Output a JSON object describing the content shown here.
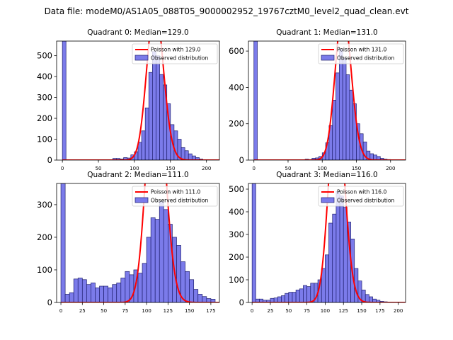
{
  "title": "Data file: modeM0/AS1A05_088T05_9000002952_19767cztM0_level2_quad_clean.evt",
  "colors": {
    "poisson": "#ff0000",
    "hist_fill": "#7b7bea",
    "hist_edge": "#1f1f6e",
    "legend_patch": "#7b7bea"
  },
  "chart_data": [
    {
      "type": "bar",
      "title": "Quadrant 0: Median=129.0",
      "median": 129.0,
      "xlim": [
        -8,
        218
      ],
      "ylim": [
        0,
        570
      ],
      "xticks": [
        0,
        50,
        100,
        150,
        200
      ],
      "yticks": [
        0,
        100,
        200,
        300,
        400,
        500
      ],
      "bin_width": 5,
      "legend": {
        "line_label": "Poisson with 129.0",
        "bar_label": "Observed distribution",
        "position": "upper right"
      },
      "bins": [
        {
          "x": 0,
          "count": 570
        },
        {
          "x": 5,
          "count": 0
        },
        {
          "x": 10,
          "count": 0
        },
        {
          "x": 15,
          "count": 0
        },
        {
          "x": 20,
          "count": 0
        },
        {
          "x": 25,
          "count": 0
        },
        {
          "x": 30,
          "count": 0
        },
        {
          "x": 35,
          "count": 0
        },
        {
          "x": 40,
          "count": 0
        },
        {
          "x": 45,
          "count": 0
        },
        {
          "x": 50,
          "count": 0
        },
        {
          "x": 55,
          "count": 0
        },
        {
          "x": 60,
          "count": 0
        },
        {
          "x": 65,
          "count": 0
        },
        {
          "x": 70,
          "count": 8
        },
        {
          "x": 75,
          "count": 8
        },
        {
          "x": 80,
          "count": 5
        },
        {
          "x": 85,
          "count": 12
        },
        {
          "x": 90,
          "count": 10
        },
        {
          "x": 95,
          "count": 25
        },
        {
          "x": 100,
          "count": 40
        },
        {
          "x": 105,
          "count": 85
        },
        {
          "x": 110,
          "count": 140
        },
        {
          "x": 115,
          "count": 250
        },
        {
          "x": 120,
          "count": 420
        },
        {
          "x": 125,
          "count": 520
        },
        {
          "x": 130,
          "count": 500
        },
        {
          "x": 135,
          "count": 410
        },
        {
          "x": 140,
          "count": 360
        },
        {
          "x": 145,
          "count": 270
        },
        {
          "x": 150,
          "count": 170
        },
        {
          "x": 155,
          "count": 140
        },
        {
          "x": 160,
          "count": 100
        },
        {
          "x": 165,
          "count": 60
        },
        {
          "x": 170,
          "count": 45
        },
        {
          "x": 175,
          "count": 30
        },
        {
          "x": 180,
          "count": 20
        },
        {
          "x": 185,
          "count": 12
        },
        {
          "x": 190,
          "count": 5
        },
        {
          "x": 195,
          "count": 2
        }
      ]
    },
    {
      "type": "bar",
      "title": "Quadrant 1: Median=131.0",
      "median": 131.0,
      "xlim": [
        -8,
        222
      ],
      "ylim": [
        0,
        655
      ],
      "xticks": [
        0,
        50,
        100,
        150,
        200
      ],
      "yticks": [
        0,
        200,
        400,
        600
      ],
      "bin_width": 5,
      "legend": {
        "line_label": "Poisson with 131.0",
        "bar_label": "Observed distribution",
        "position": "upper right"
      },
      "bins": [
        {
          "x": 0,
          "count": 655
        },
        {
          "x": 5,
          "count": 0
        },
        {
          "x": 10,
          "count": 0
        },
        {
          "x": 15,
          "count": 0
        },
        {
          "x": 20,
          "count": 0
        },
        {
          "x": 25,
          "count": 0
        },
        {
          "x": 30,
          "count": 0
        },
        {
          "x": 35,
          "count": 0
        },
        {
          "x": 40,
          "count": 0
        },
        {
          "x": 45,
          "count": 0
        },
        {
          "x": 50,
          "count": 0
        },
        {
          "x": 55,
          "count": 0
        },
        {
          "x": 60,
          "count": 0
        },
        {
          "x": 65,
          "count": 0
        },
        {
          "x": 70,
          "count": 0
        },
        {
          "x": 75,
          "count": 5
        },
        {
          "x": 80,
          "count": 3
        },
        {
          "x": 85,
          "count": 10
        },
        {
          "x": 90,
          "count": 12
        },
        {
          "x": 95,
          "count": 20
        },
        {
          "x": 100,
          "count": 40
        },
        {
          "x": 105,
          "count": 95
        },
        {
          "x": 110,
          "count": 190
        },
        {
          "x": 115,
          "count": 330
        },
        {
          "x": 120,
          "count": 480
        },
        {
          "x": 125,
          "count": 610
        },
        {
          "x": 130,
          "count": 560
        },
        {
          "x": 135,
          "count": 470
        },
        {
          "x": 140,
          "count": 385
        },
        {
          "x": 145,
          "count": 310
        },
        {
          "x": 150,
          "count": 200
        },
        {
          "x": 155,
          "count": 145
        },
        {
          "x": 160,
          "count": 100
        },
        {
          "x": 165,
          "count": 50
        },
        {
          "x": 170,
          "count": 35
        },
        {
          "x": 175,
          "count": 28
        },
        {
          "x": 180,
          "count": 20
        },
        {
          "x": 185,
          "count": 10
        },
        {
          "x": 190,
          "count": 5
        },
        {
          "x": 195,
          "count": 3
        }
      ]
    },
    {
      "type": "bar",
      "title": "Quadrant 2: Median=111.0",
      "median": 111.0,
      "xlim": [
        -5,
        185
      ],
      "ylim": [
        0,
        365
      ],
      "xticks": [
        0,
        25,
        50,
        75,
        100,
        125,
        150,
        175
      ],
      "yticks": [
        0,
        100,
        200,
        300
      ],
      "bin_width": 5,
      "legend": {
        "line_label": "Poisson with 111.0",
        "bar_label": "Observed distribution",
        "position": "upper right"
      },
      "bins": [
        {
          "x": 0,
          "count": 365
        },
        {
          "x": 5,
          "count": 25
        },
        {
          "x": 10,
          "count": 30
        },
        {
          "x": 15,
          "count": 72
        },
        {
          "x": 20,
          "count": 75
        },
        {
          "x": 25,
          "count": 70
        },
        {
          "x": 30,
          "count": 55
        },
        {
          "x": 35,
          "count": 60
        },
        {
          "x": 40,
          "count": 45
        },
        {
          "x": 45,
          "count": 50
        },
        {
          "x": 50,
          "count": 50
        },
        {
          "x": 55,
          "count": 45
        },
        {
          "x": 60,
          "count": 55
        },
        {
          "x": 65,
          "count": 60
        },
        {
          "x": 70,
          "count": 75
        },
        {
          "x": 75,
          "count": 95
        },
        {
          "x": 80,
          "count": 85
        },
        {
          "x": 85,
          "count": 100
        },
        {
          "x": 90,
          "count": 90
        },
        {
          "x": 95,
          "count": 120
        },
        {
          "x": 100,
          "count": 200
        },
        {
          "x": 105,
          "count": 260
        },
        {
          "x": 110,
          "count": 255
        },
        {
          "x": 115,
          "count": 310
        },
        {
          "x": 120,
          "count": 285
        },
        {
          "x": 125,
          "count": 240
        },
        {
          "x": 130,
          "count": 200
        },
        {
          "x": 135,
          "count": 175
        },
        {
          "x": 140,
          "count": 125
        },
        {
          "x": 145,
          "count": 95
        },
        {
          "x": 150,
          "count": 70
        },
        {
          "x": 155,
          "count": 40
        },
        {
          "x": 160,
          "count": 25
        },
        {
          "x": 165,
          "count": 18
        },
        {
          "x": 170,
          "count": 12
        },
        {
          "x": 175,
          "count": 10
        }
      ]
    },
    {
      "type": "bar",
      "title": "Quadrant 3: Median=116.0",
      "median": 116.0,
      "xlim": [
        -5,
        210
      ],
      "ylim": [
        0,
        525
      ],
      "xticks": [
        0,
        25,
        50,
        75,
        100,
        125,
        150,
        175,
        200
      ],
      "yticks": [
        0,
        100,
        200,
        300,
        400,
        500
      ],
      "bin_width": 5,
      "legend": {
        "line_label": "Poisson with 116.0",
        "bar_label": "Observed distribution",
        "position": "upper right"
      },
      "bins": [
        {
          "x": 0,
          "count": 525
        },
        {
          "x": 5,
          "count": 15
        },
        {
          "x": 10,
          "count": 15
        },
        {
          "x": 15,
          "count": 10
        },
        {
          "x": 20,
          "count": 10
        },
        {
          "x": 25,
          "count": 18
        },
        {
          "x": 30,
          "count": 20
        },
        {
          "x": 35,
          "count": 25
        },
        {
          "x": 40,
          "count": 30
        },
        {
          "x": 45,
          "count": 40
        },
        {
          "x": 50,
          "count": 45
        },
        {
          "x": 55,
          "count": 45
        },
        {
          "x": 60,
          "count": 55
        },
        {
          "x": 65,
          "count": 60
        },
        {
          "x": 70,
          "count": 75
        },
        {
          "x": 75,
          "count": 70
        },
        {
          "x": 80,
          "count": 85
        },
        {
          "x": 85,
          "count": 85
        },
        {
          "x": 90,
          "count": 100
        },
        {
          "x": 95,
          "count": 150
        },
        {
          "x": 100,
          "count": 210
        },
        {
          "x": 105,
          "count": 350
        },
        {
          "x": 110,
          "count": 390
        },
        {
          "x": 115,
          "count": 490
        },
        {
          "x": 120,
          "count": 470
        },
        {
          "x": 125,
          "count": 420
        },
        {
          "x": 130,
          "count": 355
        },
        {
          "x": 135,
          "count": 280
        },
        {
          "x": 140,
          "count": 150
        },
        {
          "x": 145,
          "count": 95
        },
        {
          "x": 150,
          "count": 55
        },
        {
          "x": 155,
          "count": 35
        },
        {
          "x": 160,
          "count": 25
        },
        {
          "x": 165,
          "count": 15
        },
        {
          "x": 170,
          "count": 10
        },
        {
          "x": 175,
          "count": 5
        },
        {
          "x": 180,
          "count": 3
        }
      ]
    }
  ]
}
